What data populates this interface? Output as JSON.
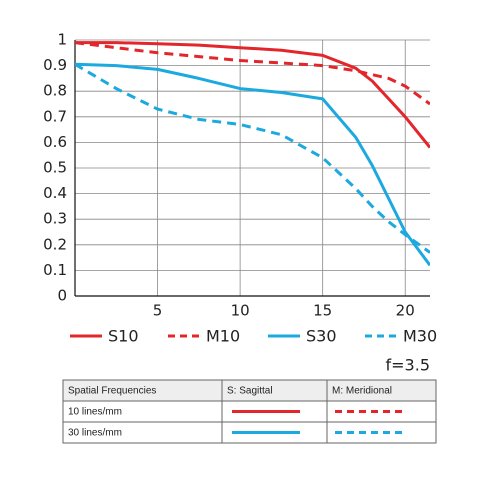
{
  "chart_data": {
    "type": "line",
    "x": [
      0,
      2.5,
      5,
      7.5,
      10,
      12.5,
      15,
      17,
      18,
      19,
      20,
      21.5
    ],
    "series": [
      {
        "name": "S10",
        "color": "#e3262b",
        "style": "solid",
        "values": [
          0.99,
          0.99,
          0.985,
          0.98,
          0.97,
          0.96,
          0.94,
          0.89,
          0.84,
          0.77,
          0.7,
          0.58
        ]
      },
      {
        "name": "M10",
        "color": "#e3262b",
        "style": "dashed",
        "values": [
          0.99,
          0.97,
          0.95,
          0.935,
          0.92,
          0.91,
          0.9,
          0.88,
          0.865,
          0.85,
          0.82,
          0.75
        ]
      },
      {
        "name": "S30",
        "color": "#1ba9df",
        "style": "solid",
        "values": [
          0.905,
          0.9,
          0.885,
          0.85,
          0.81,
          0.795,
          0.77,
          0.62,
          0.51,
          0.38,
          0.25,
          0.12
        ]
      },
      {
        "name": "M30",
        "color": "#1ba9df",
        "style": "dashed",
        "values": [
          0.905,
          0.81,
          0.73,
          0.69,
          0.67,
          0.63,
          0.54,
          0.42,
          0.35,
          0.29,
          0.24,
          0.17
        ]
      }
    ],
    "xlim": [
      0,
      21.5
    ],
    "xticks": [
      5,
      10,
      15,
      20
    ],
    "ylim": [
      0,
      1
    ],
    "yticks": [
      0,
      0.1,
      0.2,
      0.3,
      0.4,
      0.5,
      0.6,
      0.7,
      0.8,
      0.9,
      1
    ],
    "grid": true,
    "annotation": "f=3.5"
  },
  "table": {
    "header": [
      "Spatial Frequencies",
      "S: Sagittal",
      "M: Meridional"
    ],
    "rows": [
      [
        "10 lines/mm"
      ],
      [
        "30 lines/mm"
      ]
    ]
  }
}
